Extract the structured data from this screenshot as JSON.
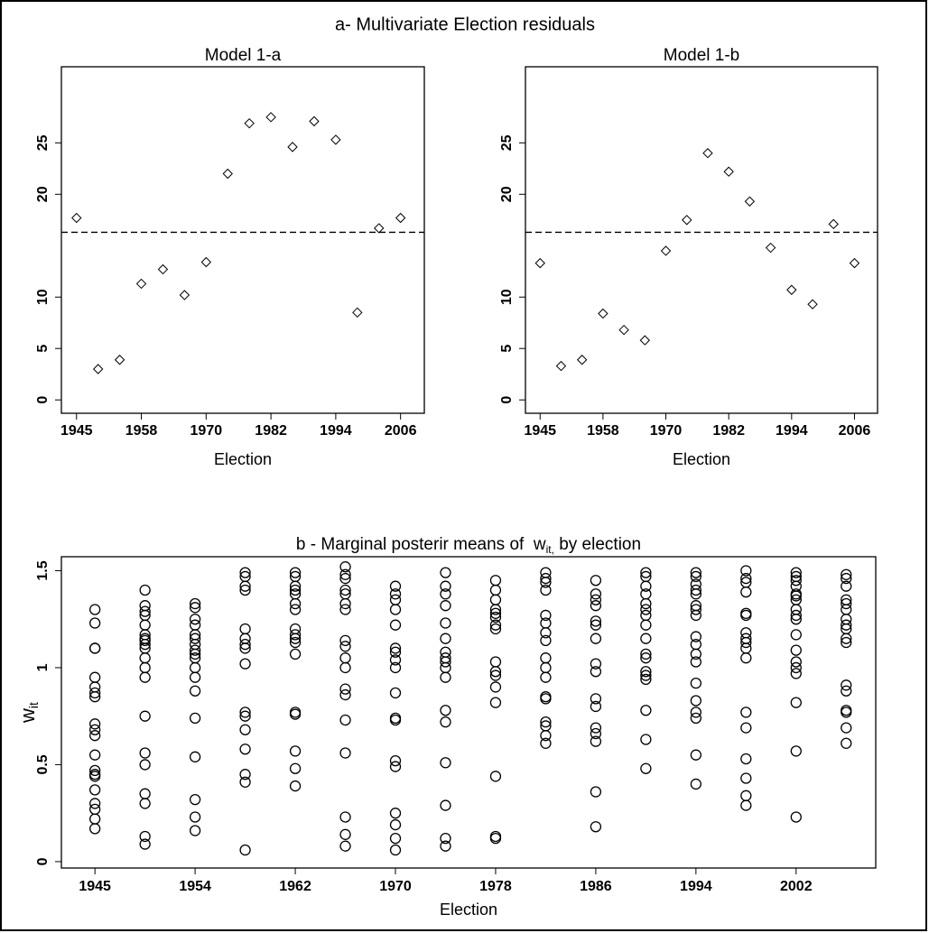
{
  "title": "a- Multivariate Election residuals",
  "chart_data": [
    {
      "type": "scatter",
      "marker": "diamond",
      "title": "Model 1-a",
      "xlabel": "Election",
      "x": [
        1,
        2,
        3,
        4,
        5,
        6,
        7,
        8,
        9,
        10,
        11,
        12,
        13,
        14,
        15,
        16
      ],
      "values": [
        17.7,
        3.0,
        3.9,
        11.3,
        12.7,
        10.2,
        13.4,
        22.0,
        26.9,
        27.5,
        24.6,
        27.1,
        25.3,
        8.5,
        16.7,
        17.7
      ],
      "hline": 16.3,
      "xlim": [
        0.3,
        17.1
      ],
      "ylim": [
        -1.3,
        32.4
      ],
      "xticks": [
        {
          "value": 1,
          "label": "1945"
        },
        {
          "value": 4,
          "label": "1958"
        },
        {
          "value": 7,
          "label": "1970"
        },
        {
          "value": 10,
          "label": "1982"
        },
        {
          "value": 13,
          "label": "1994"
        },
        {
          "value": 16,
          "label": "2006"
        }
      ],
      "yticks": [
        0,
        5,
        10,
        20,
        25
      ]
    },
    {
      "type": "scatter",
      "marker": "diamond",
      "title": "Model 1-b",
      "xlabel": "Election",
      "x": [
        1,
        2,
        3,
        4,
        5,
        6,
        7,
        8,
        9,
        10,
        11,
        12,
        13,
        14,
        15,
        16
      ],
      "values": [
        13.3,
        3.3,
        3.9,
        8.4,
        6.8,
        5.8,
        14.5,
        17.5,
        24.0,
        22.2,
        19.3,
        14.8,
        10.7,
        9.3,
        17.1,
        13.3
      ],
      "hline": 16.3,
      "xlim": [
        0.3,
        17.1
      ],
      "ylim": [
        -1.3,
        32.4
      ],
      "xticks": [
        {
          "value": 1,
          "label": "1945"
        },
        {
          "value": 4,
          "label": "1958"
        },
        {
          "value": 7,
          "label": "1970"
        },
        {
          "value": 10,
          "label": "1982"
        },
        {
          "value": 13,
          "label": "1994"
        },
        {
          "value": 16,
          "label": "2006"
        }
      ],
      "yticks": [
        0,
        5,
        10,
        20,
        25
      ]
    },
    {
      "type": "strip",
      "marker": "circle",
      "title": "b - Marginal posterir means of  w",
      "title_sub": "it,",
      "title_tail": " by election",
      "xlabel": "Election",
      "ylabel": "w",
      "ylabel_sub": "it",
      "x": [
        1,
        2,
        3,
        4,
        5,
        6,
        7,
        8,
        9,
        10,
        11,
        12,
        13,
        14,
        15,
        16
      ],
      "values": [
        [
          1.3,
          1.23,
          1.1,
          1.1,
          0.95,
          0.9,
          0.87,
          0.85,
          0.71,
          0.68,
          0.65,
          0.55,
          0.47,
          0.45,
          0.44,
          0.37,
          0.3,
          0.27,
          0.22,
          0.17
        ],
        [
          1.4,
          1.32,
          1.29,
          1.27,
          1.22,
          1.17,
          1.15,
          1.14,
          1.12,
          1.1,
          1.05,
          1.0,
          0.95,
          0.75,
          0.56,
          0.5,
          0.35,
          0.3,
          0.13,
          0.09
        ],
        [
          1.33,
          1.31,
          1.25,
          1.22,
          1.17,
          1.15,
          1.12,
          1.09,
          1.07,
          1.05,
          1.0,
          0.95,
          0.88,
          0.74,
          0.54,
          0.32,
          0.23,
          0.16
        ],
        [
          1.49,
          1.47,
          1.42,
          1.4,
          1.2,
          1.15,
          1.12,
          1.1,
          1.02,
          0.77,
          0.75,
          0.68,
          0.58,
          0.45,
          0.41,
          0.06
        ],
        [
          1.49,
          1.47,
          1.42,
          1.4,
          1.38,
          1.33,
          1.3,
          1.2,
          1.17,
          1.15,
          1.13,
          1.07,
          0.77,
          0.76,
          0.57,
          0.48,
          0.39
        ],
        [
          1.52,
          1.48,
          1.46,
          1.4,
          1.38,
          1.33,
          1.3,
          1.14,
          1.11,
          1.05,
          1.0,
          0.89,
          0.86,
          0.73,
          0.56,
          0.23,
          0.14,
          0.08
        ],
        [
          1.42,
          1.38,
          1.35,
          1.3,
          1.22,
          1.1,
          1.08,
          1.04,
          1.0,
          0.87,
          0.74,
          0.73,
          0.52,
          0.49,
          0.25,
          0.19,
          0.12,
          0.06
        ],
        [
          1.49,
          1.42,
          1.38,
          1.32,
          1.23,
          1.15,
          1.08,
          1.05,
          1.03,
          1.0,
          0.95,
          0.78,
          0.72,
          0.51,
          0.29,
          0.12,
          0.08
        ],
        [
          1.45,
          1.4,
          1.35,
          1.3,
          1.28,
          1.26,
          1.22,
          1.2,
          1.03,
          0.98,
          0.96,
          0.9,
          0.82,
          0.44,
          0.13,
          0.12
        ],
        [
          1.49,
          1.46,
          1.44,
          1.4,
          1.27,
          1.23,
          1.18,
          1.14,
          1.05,
          1.0,
          0.95,
          0.85,
          0.84,
          0.72,
          0.7,
          0.65,
          0.61
        ],
        [
          1.45,
          1.38,
          1.35,
          1.32,
          1.24,
          1.22,
          1.15,
          1.02,
          0.98,
          0.84,
          0.8,
          0.69,
          0.66,
          0.62,
          0.36,
          0.18
        ],
        [
          1.49,
          1.47,
          1.42,
          1.38,
          1.33,
          1.3,
          1.27,
          1.22,
          1.15,
          1.07,
          1.05,
          0.98,
          0.96,
          0.94,
          0.78,
          0.63,
          0.48
        ],
        [
          1.49,
          1.47,
          1.43,
          1.4,
          1.38,
          1.32,
          1.3,
          1.27,
          1.16,
          1.12,
          1.07,
          1.03,
          0.92,
          0.83,
          0.77,
          0.74,
          0.55,
          0.4
        ],
        [
          1.5,
          1.46,
          1.44,
          1.39,
          1.28,
          1.27,
          1.18,
          1.15,
          1.13,
          1.1,
          1.05,
          0.77,
          0.69,
          0.53,
          0.43,
          0.34,
          0.29
        ],
        [
          1.49,
          1.47,
          1.45,
          1.42,
          1.38,
          1.37,
          1.35,
          1.3,
          1.27,
          1.25,
          1.17,
          1.09,
          1.03,
          1.0,
          0.97,
          0.82,
          0.57,
          0.23
        ],
        [
          1.48,
          1.46,
          1.42,
          1.35,
          1.33,
          1.3,
          1.25,
          1.22,
          1.2,
          1.15,
          1.13,
          0.91,
          0.88,
          0.78,
          0.77,
          0.69,
          0.61
        ]
      ],
      "xlim": [
        0.33,
        16.59
      ],
      "ylim": [
        -0.033,
        1.572
      ],
      "xticks": [
        {
          "value": 1,
          "label": "1945"
        },
        {
          "value": 3,
          "label": "1954"
        },
        {
          "value": 5,
          "label": "1962"
        },
        {
          "value": 7,
          "label": "1970"
        },
        {
          "value": 9,
          "label": "1978"
        },
        {
          "value": 11,
          "label": "1986"
        },
        {
          "value": 13,
          "label": "1994"
        },
        {
          "value": 15,
          "label": "2002"
        }
      ],
      "yticks": [
        0,
        0.5,
        1,
        1.5
      ]
    }
  ]
}
